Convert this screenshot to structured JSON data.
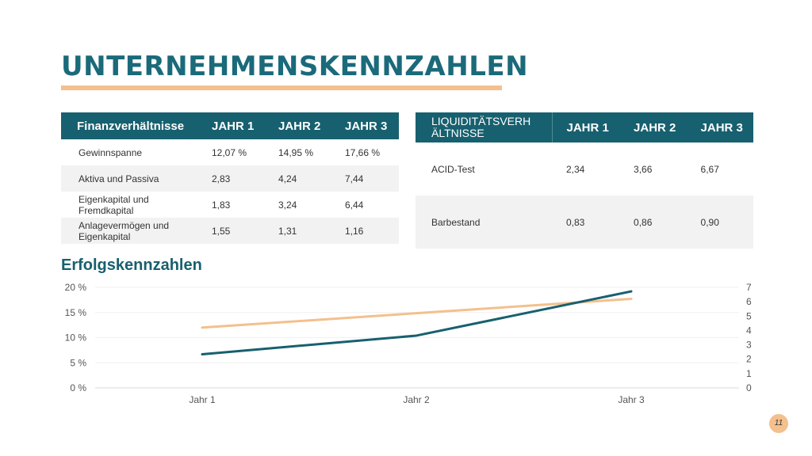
{
  "title": "UNTERNEHMENSKENNZAHLEN",
  "financial_table": {
    "headers": [
      "Finanzverhältnisse",
      "JAHR 1",
      "JAHR 2",
      "JAHR 3"
    ],
    "rows": [
      [
        "Gewinnspanne",
        "12,07 %",
        "14,95 %",
        "17,66 %"
      ],
      [
        "Aktiva und Passiva",
        "2,83",
        "4,24",
        "7,44"
      ],
      [
        "Eigenkapital und Fremdkapital",
        "1,83",
        "3,24",
        "6,44"
      ],
      [
        "Anlagevermögen und Eigenkapital",
        "1,55",
        "1,31",
        "1,16"
      ]
    ]
  },
  "liquidity_table": {
    "headers": [
      "LIQUIDITÄTSVERH ÄLTNISSE",
      "JAHR 1",
      "JAHR 2",
      "JAHR 3"
    ],
    "rows": [
      [
        "ACID-Test",
        "2,34",
        "3,66",
        "6,67"
      ],
      [
        "Barbestand",
        "0,83",
        "0,86",
        "0,90"
      ]
    ]
  },
  "chart_title": "Erfolgskennzahlen",
  "page_number": "11",
  "chart_data": {
    "type": "line",
    "categories": [
      "Jahr 1",
      "Jahr 2",
      "Jahr 3"
    ],
    "series": [
      {
        "axis": "left",
        "values": [
          6.7,
          10.4,
          19.2
        ],
        "color": "#17606f"
      },
      {
        "axis": "right",
        "values": [
          4.2,
          5.2,
          6.2
        ],
        "color": "#f3c08e"
      }
    ],
    "y_left": {
      "min": 0,
      "max": 20,
      "ticks": [
        "0 %",
        "5 %",
        "10 %",
        "15 %",
        "20 %"
      ]
    },
    "y_right": {
      "min": 0,
      "max": 7,
      "ticks": [
        "0",
        "1",
        "2",
        "3",
        "4",
        "5",
        "6",
        "7"
      ]
    },
    "grid": true,
    "legend": "none"
  }
}
